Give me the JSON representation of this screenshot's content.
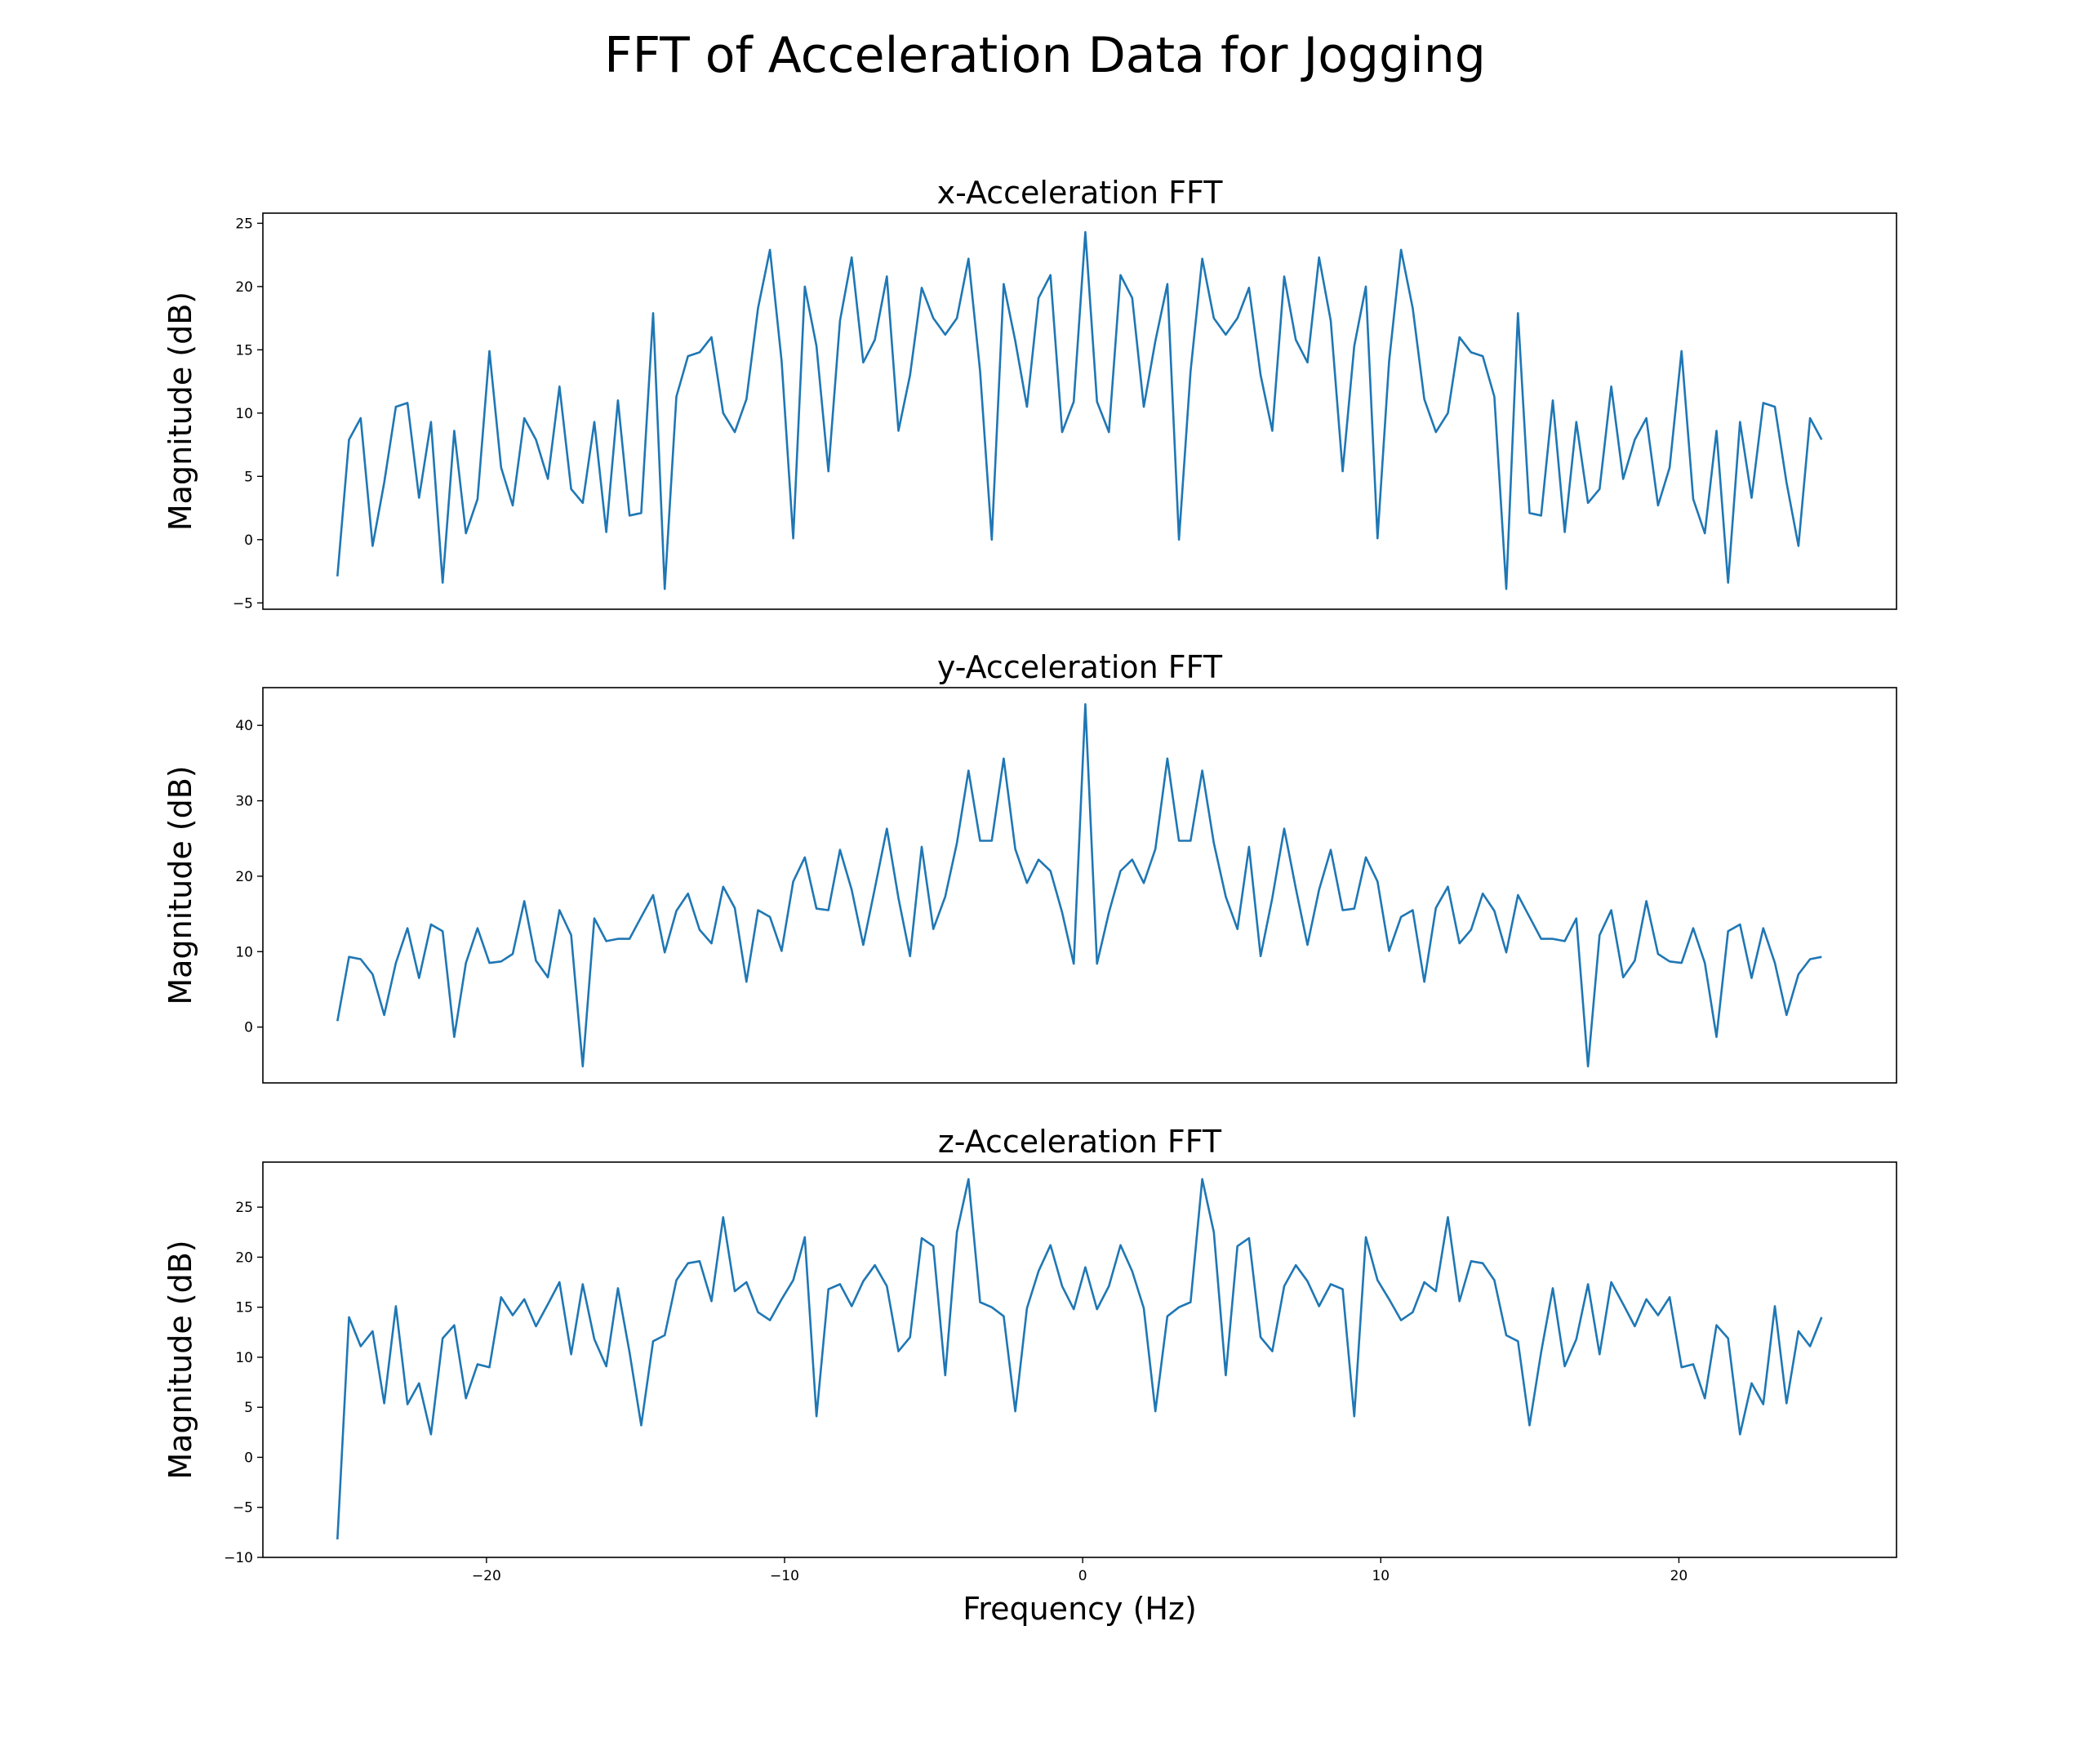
{
  "figure": {
    "title": "FFT of Acceleration Data for Jogging"
  },
  "chart_data": [
    {
      "type": "line",
      "title": "x-Acceleration FFT",
      "xlabel": "",
      "ylabel": "Magnitude (dB)",
      "xlim": [
        -27.5,
        27.3
      ],
      "ylim": [
        -5.5,
        25.8
      ],
      "yticks": [
        -5,
        0,
        5,
        10,
        15,
        20,
        25
      ],
      "xticks": [],
      "x": [
        -25.0,
        -24.61,
        -24.22,
        -23.82,
        -23.43,
        -23.04,
        -22.65,
        -22.26,
        -21.86,
        -21.47,
        -21.08,
        -20.69,
        -20.3,
        -19.9,
        -19.51,
        -19.12,
        -18.73,
        -18.34,
        -17.94,
        -17.55,
        -17.16,
        -16.77,
        -16.38,
        -15.98,
        -15.59,
        -15.2,
        -14.81,
        -14.41,
        -14.02,
        -13.63,
        -13.24,
        -12.85,
        -12.45,
        -12.06,
        -11.67,
        -11.28,
        -10.89,
        -10.49,
        -10.1,
        -9.71,
        -9.32,
        -8.93,
        -8.53,
        -8.14,
        -7.75,
        -7.36,
        -6.97,
        -6.57,
        -6.18,
        -5.79,
        -5.4,
        -5.01,
        -4.61,
        -4.22,
        -3.83,
        -3.44,
        -3.05,
        -2.65,
        -2.26,
        -1.87,
        -1.48,
        -1.08,
        -0.69,
        -0.3,
        0.09,
        0.48,
        0.88,
        1.27,
        1.66,
        2.05,
        2.44,
        2.84,
        3.23,
        3.62,
        4.01,
        4.4,
        4.8,
        5.19,
        5.58,
        5.97,
        6.36,
        6.76,
        7.15,
        7.54,
        7.93,
        8.32,
        8.72,
        9.11,
        9.5,
        9.89,
        10.28,
        10.68,
        11.07,
        11.46,
        11.85,
        12.25,
        12.64,
        13.03,
        13.42,
        13.81,
        14.21,
        14.6,
        14.99,
        15.38,
        15.77,
        16.17,
        16.56,
        16.95,
        17.34,
        17.73,
        18.13,
        18.52,
        18.91,
        19.3,
        19.69,
        20.09,
        20.48,
        20.87,
        21.26,
        21.65,
        22.05,
        22.44,
        22.83,
        23.22,
        23.61,
        24.01,
        24.4,
        24.79
      ],
      "series": [
        {
          "values": [
            -2.9,
            7.9,
            9.6,
            -0.5,
            4.5,
            10.5,
            10.8,
            3.3,
            9.3,
            -3.4,
            8.6,
            0.5,
            3.2,
            14.9,
            5.7,
            2.7,
            9.6,
            7.9,
            4.8,
            12.1,
            4.0,
            2.9,
            9.3,
            0.6,
            11.0,
            1.9,
            2.1,
            17.9,
            -3.9,
            11.3,
            14.5,
            14.8,
            16.0,
            10.0,
            8.5,
            11.1,
            18.3,
            22.9,
            14.1,
            0.1,
            20.0,
            15.3,
            5.4,
            17.3,
            22.3,
            14.0,
            15.8,
            20.8,
            8.6,
            13.0,
            19.9,
            17.5,
            16.2,
            17.5,
            22.2,
            13.3,
            0.0,
            20.2,
            15.7,
            10.5,
            19.1,
            20.9,
            8.5,
            10.9,
            24.3,
            10.9,
            8.5,
            20.9,
            19.1,
            10.5,
            15.7,
            20.2,
            0.0,
            13.3,
            22.2,
            17.5,
            16.2,
            17.5,
            19.9,
            13.0,
            8.6,
            20.8,
            15.8,
            14.0,
            22.3,
            17.3,
            5.4,
            15.3,
            20.0,
            0.1,
            14.1,
            22.9,
            18.3,
            11.1,
            8.5,
            10.0,
            16.0,
            14.8,
            14.5,
            11.3,
            -3.9,
            17.9,
            2.1,
            1.9,
            11.0,
            0.6,
            9.3,
            2.9,
            4.0,
            12.1,
            4.8,
            7.9,
            9.6,
            2.7,
            5.7,
            14.9,
            3.2,
            0.5,
            8.6,
            -3.4,
            9.3,
            3.3,
            10.8,
            10.5,
            4.5,
            -0.5,
            9.6,
            7.9
          ]
        }
      ]
    },
    {
      "type": "line",
      "title": "y-Acceleration FFT",
      "xlabel": "",
      "ylabel": "Magnitude (dB)",
      "xlim": [
        -27.5,
        27.3
      ],
      "ylim": [
        -7.4,
        45.0
      ],
      "yticks": [
        0,
        10,
        20,
        30,
        40
      ],
      "xticks": [],
      "x": [
        -25.0,
        -24.61,
        -24.22,
        -23.82,
        -23.43,
        -23.04,
        -22.65,
        -22.26,
        -21.86,
        -21.47,
        -21.08,
        -20.69,
        -20.3,
        -19.9,
        -19.51,
        -19.12,
        -18.73,
        -18.34,
        -17.94,
        -17.55,
        -17.16,
        -16.77,
        -16.38,
        -15.98,
        -15.59,
        -15.2,
        -14.81,
        -14.41,
        -14.02,
        -13.63,
        -13.24,
        -12.85,
        -12.45,
        -12.06,
        -11.67,
        -11.28,
        -10.89,
        -10.49,
        -10.1,
        -9.71,
        -9.32,
        -8.93,
        -8.53,
        -8.14,
        -7.75,
        -7.36,
        -6.97,
        -6.57,
        -6.18,
        -5.79,
        -5.4,
        -5.01,
        -4.61,
        -4.22,
        -3.83,
        -3.44,
        -3.05,
        -2.65,
        -2.26,
        -1.87,
        -1.48,
        -1.08,
        -0.69,
        -0.3,
        0.09,
        0.48,
        0.88,
        1.27,
        1.66,
        2.05,
        2.44,
        2.84,
        3.23,
        3.62,
        4.01,
        4.4,
        4.8,
        5.19,
        5.58,
        5.97,
        6.36,
        6.76,
        7.15,
        7.54,
        7.93,
        8.32,
        8.72,
        9.11,
        9.5,
        9.89,
        10.28,
        10.68,
        11.07,
        11.46,
        11.85,
        12.25,
        12.64,
        13.03,
        13.42,
        13.81,
        14.21,
        14.6,
        14.99,
        15.38,
        15.77,
        16.17,
        16.56,
        16.95,
        17.34,
        17.73,
        18.13,
        18.52,
        18.91,
        19.3,
        19.69,
        20.09,
        20.48,
        20.87,
        21.26,
        21.65,
        22.05,
        22.44,
        22.83,
        23.22,
        23.61,
        24.01,
        24.4,
        24.79
      ],
      "series": [
        {
          "values": [
            0.8,
            9.3,
            9.0,
            7.0,
            1.6,
            8.5,
            13.1,
            6.5,
            13.6,
            12.7,
            -1.3,
            8.5,
            13.1,
            8.5,
            8.7,
            9.7,
            16.7,
            8.8,
            6.6,
            15.5,
            12.2,
            -5.2,
            14.4,
            11.4,
            11.7,
            11.7,
            14.6,
            17.5,
            9.9,
            15.4,
            17.7,
            12.9,
            11.1,
            18.6,
            15.8,
            6.0,
            15.5,
            14.6,
            10.1,
            19.3,
            22.5,
            15.7,
            15.5,
            23.5,
            18.2,
            10.9,
            18.4,
            26.3,
            17.1,
            9.4,
            23.9,
            13.0,
            17.3,
            24.4,
            34.0,
            24.7,
            24.7,
            35.6,
            23.6,
            19.1,
            22.2,
            20.7,
            15.2,
            8.4,
            42.8,
            8.4,
            15.2,
            20.7,
            22.2,
            19.1,
            23.6,
            35.6,
            24.7,
            24.7,
            34.0,
            24.4,
            17.3,
            13.0,
            23.9,
            9.4,
            17.1,
            26.3,
            18.4,
            10.9,
            18.2,
            23.5,
            15.5,
            15.7,
            22.5,
            19.3,
            10.1,
            14.6,
            15.5,
            6.0,
            15.8,
            18.6,
            11.1,
            12.9,
            17.7,
            15.4,
            9.9,
            17.5,
            14.6,
            11.7,
            11.7,
            11.4,
            14.4,
            -5.2,
            12.2,
            15.5,
            6.6,
            8.8,
            16.7,
            9.7,
            8.7,
            8.5,
            13.1,
            8.5,
            -1.3,
            12.7,
            13.6,
            6.5,
            13.1,
            8.5,
            1.6,
            7.0,
            9.0,
            9.3
          ]
        }
      ]
    },
    {
      "type": "line",
      "title": "z-Acceleration FFT",
      "xlabel": "Frequency (Hz)",
      "ylabel": "Magnitude (dB)",
      "xlim": [
        -27.5,
        27.3
      ],
      "ylim": [
        -10.0,
        29.5
      ],
      "yticks": [
        -10,
        -5,
        0,
        5,
        10,
        15,
        20,
        25
      ],
      "xticks": [
        -20,
        -10,
        0,
        10,
        20
      ],
      "xtick_labels": [
        "−20",
        "−10",
        "0",
        "10",
        "20"
      ],
      "x": [
        -25.0,
        -24.61,
        -24.22,
        -23.82,
        -23.43,
        -23.04,
        -22.65,
        -22.26,
        -21.86,
        -21.47,
        -21.08,
        -20.69,
        -20.3,
        -19.9,
        -19.51,
        -19.12,
        -18.73,
        -18.34,
        -17.94,
        -17.55,
        -17.16,
        -16.77,
        -16.38,
        -15.98,
        -15.59,
        -15.2,
        -14.81,
        -14.41,
        -14.02,
        -13.63,
        -13.24,
        -12.85,
        -12.45,
        -12.06,
        -11.67,
        -11.28,
        -10.89,
        -10.49,
        -10.1,
        -9.71,
        -9.32,
        -8.93,
        -8.53,
        -8.14,
        -7.75,
        -7.36,
        -6.97,
        -6.57,
        -6.18,
        -5.79,
        -5.4,
        -5.01,
        -4.61,
        -4.22,
        -3.83,
        -3.44,
        -3.05,
        -2.65,
        -2.26,
        -1.87,
        -1.48,
        -1.08,
        -0.69,
        -0.3,
        0.09,
        0.48,
        0.88,
        1.27,
        1.66,
        2.05,
        2.44,
        2.84,
        3.23,
        3.62,
        4.01,
        4.4,
        4.8,
        5.19,
        5.58,
        5.97,
        6.36,
        6.76,
        7.15,
        7.54,
        7.93,
        8.32,
        8.72,
        9.11,
        9.5,
        9.89,
        10.28,
        10.68,
        11.07,
        11.46,
        11.85,
        12.25,
        12.64,
        13.03,
        13.42,
        13.81,
        14.21,
        14.6,
        14.99,
        15.38,
        15.77,
        16.17,
        16.56,
        16.95,
        17.34,
        17.73,
        18.13,
        18.52,
        18.91,
        19.3,
        19.69,
        20.09,
        20.48,
        20.87,
        21.26,
        21.65,
        22.05,
        22.44,
        22.83,
        23.22,
        23.61,
        24.01,
        24.4,
        24.79
      ],
      "series": [
        {
          "values": [
            -8.2,
            14.0,
            11.1,
            12.6,
            5.4,
            15.1,
            5.3,
            7.4,
            2.3,
            11.9,
            13.2,
            5.9,
            9.3,
            9.0,
            16.0,
            14.2,
            15.8,
            13.1,
            15.3,
            17.5,
            10.3,
            17.3,
            11.8,
            9.1,
            16.9,
            10.5,
            3.2,
            11.6,
            12.2,
            17.7,
            19.4,
            19.6,
            15.6,
            24.0,
            16.6,
            17.5,
            14.5,
            13.7,
            15.8,
            17.7,
            22.0,
            4.1,
            16.8,
            17.3,
            15.1,
            17.6,
            19.2,
            17.1,
            10.6,
            12.0,
            21.9,
            21.1,
            8.2,
            22.5,
            27.8,
            15.5,
            15.0,
            14.1,
            4.6,
            14.9,
            18.6,
            21.2,
            17.1,
            14.8,
            19.0,
            14.8,
            17.1,
            21.2,
            18.6,
            14.9,
            4.6,
            14.1,
            15.0,
            15.5,
            27.8,
            22.5,
            8.2,
            21.1,
            21.9,
            12.0,
            10.6,
            17.1,
            19.2,
            17.6,
            15.1,
            17.3,
            16.8,
            4.1,
            22.0,
            17.7,
            15.8,
            13.7,
            14.5,
            17.5,
            16.6,
            24.0,
            15.6,
            19.6,
            19.4,
            17.7,
            12.2,
            11.6,
            3.2,
            10.5,
            16.9,
            9.1,
            11.8,
            17.3,
            10.3,
            17.5,
            15.3,
            13.1,
            15.8,
            14.2,
            16.0,
            9.0,
            9.3,
            5.9,
            13.2,
            11.9,
            2.3,
            7.4,
            5.3,
            15.1,
            5.4,
            12.6,
            11.1,
            14.0
          ]
        }
      ]
    }
  ]
}
